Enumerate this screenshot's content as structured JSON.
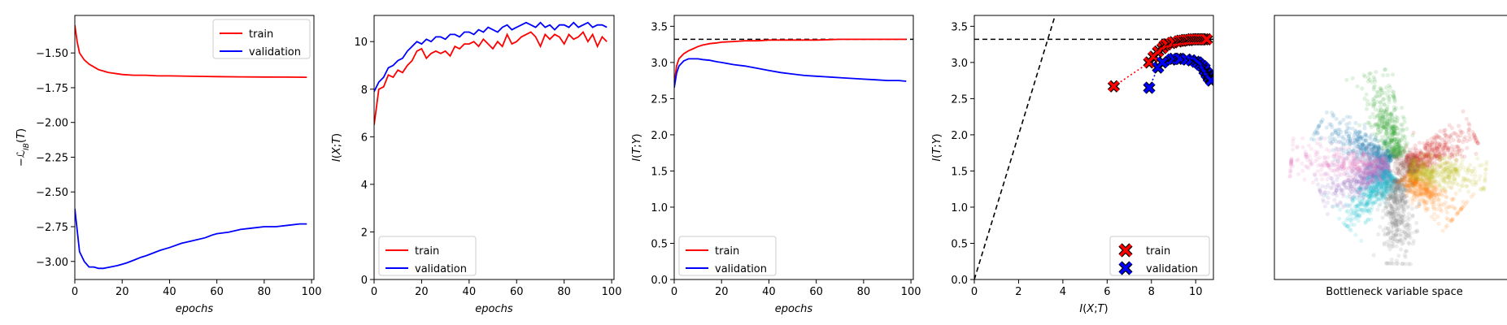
{
  "chart_data": [
    {
      "type": "line",
      "title": "",
      "xlabel": "epochs",
      "ylabel": "−ℒ_IB(T)",
      "xlim": [
        0,
        101
      ],
      "ylim": [
        -3.13,
        -1.23
      ],
      "xticks": [
        0,
        20,
        40,
        60,
        80,
        100
      ],
      "yticks": [
        -3.0,
        -2.75,
        -2.5,
        -2.25,
        -2.0,
        -1.75,
        -1.5
      ],
      "ytick_labels": [
        "−3.00",
        "−2.75",
        "−2.50",
        "−2.25",
        "−2.00",
        "−1.75",
        "−1.50"
      ],
      "legend": "top-right",
      "hline": null,
      "series": [
        {
          "name": "train",
          "color": "#ff0000",
          "x": [
            0,
            1,
            2,
            4,
            6,
            8,
            10,
            12,
            14,
            16,
            18,
            20,
            25,
            30,
            35,
            40,
            50,
            60,
            70,
            80,
            90,
            98
          ],
          "y": [
            -1.3,
            -1.42,
            -1.5,
            -1.55,
            -1.58,
            -1.6,
            -1.62,
            -1.63,
            -1.64,
            -1.645,
            -1.65,
            -1.655,
            -1.66,
            -1.66,
            -1.665,
            -1.665,
            -1.668,
            -1.67,
            -1.672,
            -1.673,
            -1.674,
            -1.675
          ]
        },
        {
          "name": "validation",
          "color": "#0000ff",
          "x": [
            0,
            2,
            4,
            6,
            8,
            10,
            12,
            15,
            18,
            20,
            22,
            25,
            28,
            30,
            33,
            36,
            40,
            45,
            50,
            55,
            58,
            60,
            65,
            70,
            75,
            80,
            85,
            90,
            95,
            98
          ],
          "y": [
            -2.62,
            -2.93,
            -3.0,
            -3.04,
            -3.04,
            -3.05,
            -3.05,
            -3.04,
            -3.03,
            -3.02,
            -3.01,
            -2.99,
            -2.97,
            -2.96,
            -2.94,
            -2.92,
            -2.9,
            -2.87,
            -2.85,
            -2.83,
            -2.81,
            -2.8,
            -2.79,
            -2.77,
            -2.76,
            -2.75,
            -2.75,
            -2.74,
            -2.73,
            -2.73
          ]
        }
      ]
    },
    {
      "type": "line",
      "title": "",
      "xlabel": "epochs",
      "ylabel": "I(X;T)",
      "xlim": [
        0,
        101
      ],
      "ylim": [
        0,
        11.1
      ],
      "xticks": [
        0,
        20,
        40,
        60,
        80,
        100
      ],
      "yticks": [
        0,
        2,
        4,
        6,
        8,
        10
      ],
      "ytick_labels": [
        "0",
        "2",
        "4",
        "6",
        "8",
        "10"
      ],
      "legend": "bottom-left",
      "hline": null,
      "series": [
        {
          "name": "train",
          "color": "#ff0000",
          "x": [
            0,
            2,
            4,
            6,
            8,
            10,
            12,
            14,
            16,
            18,
            20,
            22,
            24,
            26,
            28,
            30,
            32,
            34,
            36,
            38,
            40,
            42,
            44,
            46,
            48,
            50,
            52,
            54,
            56,
            58,
            60,
            62,
            64,
            66,
            68,
            70,
            72,
            74,
            76,
            78,
            80,
            82,
            84,
            86,
            88,
            90,
            92,
            94,
            96,
            98
          ],
          "y": [
            6.5,
            8.0,
            8.1,
            8.6,
            8.5,
            8.8,
            8.7,
            9.0,
            9.2,
            9.6,
            9.7,
            9.3,
            9.5,
            9.6,
            9.5,
            9.6,
            9.4,
            9.8,
            9.7,
            9.9,
            9.9,
            10.0,
            9.8,
            10.1,
            9.9,
            9.7,
            10.0,
            9.8,
            10.3,
            9.9,
            10.0,
            10.2,
            10.3,
            10.4,
            10.2,
            9.8,
            10.3,
            10.1,
            10.3,
            10.2,
            9.9,
            10.3,
            10.1,
            10.2,
            10.4,
            10.0,
            10.3,
            9.8,
            10.2,
            10.0
          ]
        },
        {
          "name": "validation",
          "color": "#0000ff",
          "x": [
            0,
            2,
            4,
            6,
            8,
            10,
            12,
            14,
            16,
            18,
            20,
            22,
            24,
            26,
            28,
            30,
            32,
            34,
            36,
            38,
            40,
            42,
            44,
            46,
            48,
            50,
            52,
            54,
            56,
            58,
            60,
            62,
            64,
            66,
            68,
            70,
            72,
            74,
            76,
            78,
            80,
            82,
            84,
            86,
            88,
            90,
            92,
            94,
            96,
            98
          ],
          "y": [
            7.9,
            8.3,
            8.5,
            8.9,
            9.0,
            9.2,
            9.3,
            9.6,
            9.8,
            10.0,
            9.9,
            10.1,
            10.0,
            10.2,
            10.2,
            10.1,
            10.3,
            10.3,
            10.2,
            10.4,
            10.4,
            10.3,
            10.5,
            10.4,
            10.6,
            10.5,
            10.4,
            10.6,
            10.7,
            10.5,
            10.6,
            10.7,
            10.8,
            10.7,
            10.6,
            10.8,
            10.6,
            10.7,
            10.5,
            10.7,
            10.7,
            10.6,
            10.8,
            10.6,
            10.7,
            10.8,
            10.6,
            10.7,
            10.7,
            10.6
          ]
        }
      ]
    },
    {
      "type": "line",
      "title": "",
      "xlabel": "epochs",
      "ylabel": "I(T;Y)",
      "xlim": [
        0,
        101
      ],
      "ylim": [
        0,
        3.65
      ],
      "xticks": [
        0,
        20,
        40,
        60,
        80,
        100
      ],
      "yticks": [
        0,
        0.5,
        1.0,
        1.5,
        2.0,
        2.5,
        3.0,
        3.5
      ],
      "ytick_labels": [
        "0.0",
        "0.5",
        "1.0",
        "1.5",
        "2.0",
        "2.5",
        "3.0",
        "3.5"
      ],
      "legend": "bottom-left",
      "hline": 3.32,
      "series": [
        {
          "name": "train",
          "color": "#ff0000",
          "x": [
            0,
            1,
            2,
            4,
            6,
            8,
            10,
            12,
            15,
            18,
            20,
            25,
            30,
            35,
            40,
            50,
            60,
            70,
            80,
            90,
            98
          ],
          "y": [
            2.7,
            2.95,
            3.05,
            3.12,
            3.16,
            3.19,
            3.22,
            3.24,
            3.26,
            3.27,
            3.28,
            3.29,
            3.3,
            3.3,
            3.31,
            3.31,
            3.31,
            3.32,
            3.32,
            3.32,
            3.32
          ]
        },
        {
          "name": "validation",
          "color": "#0000ff",
          "x": [
            0,
            1,
            2,
            4,
            6,
            8,
            10,
            12,
            15,
            18,
            20,
            25,
            30,
            35,
            40,
            45,
            50,
            55,
            60,
            65,
            70,
            75,
            80,
            85,
            90,
            95,
            98
          ],
          "y": [
            2.65,
            2.85,
            2.95,
            3.02,
            3.05,
            3.05,
            3.05,
            3.04,
            3.03,
            3.01,
            3.0,
            2.97,
            2.95,
            2.92,
            2.89,
            2.86,
            2.84,
            2.82,
            2.81,
            2.8,
            2.79,
            2.78,
            2.77,
            2.76,
            2.75,
            2.75,
            2.74
          ]
        }
      ]
    },
    {
      "type": "scatter",
      "title": "",
      "xlabel": "I(X;T)",
      "ylabel": "I(T;Y)",
      "xlim": [
        0,
        10.8
      ],
      "ylim": [
        0,
        3.65
      ],
      "xticks": [
        0,
        2,
        4,
        6,
        8,
        10
      ],
      "yticks": [
        0,
        0.5,
        1.0,
        1.5,
        2.0,
        2.5,
        3.0,
        3.5
      ],
      "ytick_labels": [
        "0.0",
        "0.5",
        "1.0",
        "1.5",
        "2.0",
        "2.5",
        "3.0",
        "3.5"
      ],
      "legend": "bottom-right",
      "hline": 3.32,
      "diagonal": {
        "slope": 1.0
      },
      "series": [
        {
          "name": "train",
          "color": "#ff0000",
          "x": [
            6.3,
            7.9,
            8.1,
            8.3,
            8.5,
            8.6,
            8.7,
            8.9,
            9.0,
            9.2,
            9.3,
            9.4,
            9.5,
            9.6,
            9.7,
            9.8,
            9.9,
            10.0,
            10.1,
            10.2,
            10.3,
            10.4,
            10.5
          ],
          "y": [
            2.67,
            3.0,
            3.08,
            3.15,
            3.2,
            3.24,
            3.25,
            3.27,
            3.28,
            3.29,
            3.3,
            3.3,
            3.31,
            3.31,
            3.31,
            3.32,
            3.32,
            3.32,
            3.32,
            3.32,
            3.32,
            3.32,
            3.32
          ]
        },
        {
          "name": "validation",
          "color": "#0000ff",
          "x": [
            7.9,
            8.3,
            8.5,
            8.9,
            9.0,
            9.2,
            9.3,
            9.6,
            9.8,
            10.0,
            10.1,
            10.2,
            10.3,
            10.4,
            10.4,
            10.5,
            10.5,
            10.6,
            10.6,
            10.6,
            10.7,
            10.7,
            10.7,
            10.7
          ],
          "y": [
            2.65,
            2.93,
            3.0,
            3.04,
            3.05,
            3.05,
            3.05,
            3.04,
            3.03,
            3.01,
            3.0,
            2.97,
            2.95,
            2.92,
            2.89,
            2.86,
            2.84,
            2.82,
            2.8,
            2.79,
            2.78,
            2.77,
            2.76,
            2.75
          ]
        }
      ]
    },
    {
      "type": "scatter",
      "title": "",
      "xlabel": "Bottleneck variable space",
      "ylabel": "",
      "axes": "hidden-ticks",
      "clusters": [
        {
          "color": "#2ca02c",
          "angle_deg": 105,
          "length": 0.46
        },
        {
          "color": "#d62728",
          "angle_deg": 25,
          "length": 0.38
        },
        {
          "color": "#1f77b4",
          "angle_deg": 150,
          "length": 0.42
        },
        {
          "color": "#e377c2",
          "angle_deg": 175,
          "length": 0.5
        },
        {
          "color": "#9467bd",
          "angle_deg": 198,
          "length": 0.38
        },
        {
          "color": "#17becf",
          "angle_deg": 225,
          "length": 0.36
        },
        {
          "color": "#7f7f7f",
          "angle_deg": 268,
          "length": 0.44
        },
        {
          "color": "#ff7f0e",
          "angle_deg": 320,
          "length": 0.34
        },
        {
          "color": "#bcbd22",
          "angle_deg": 355,
          "length": 0.4
        },
        {
          "color": "#8c564b",
          "angle_deg": 10,
          "length": 0.06
        }
      ]
    }
  ]
}
